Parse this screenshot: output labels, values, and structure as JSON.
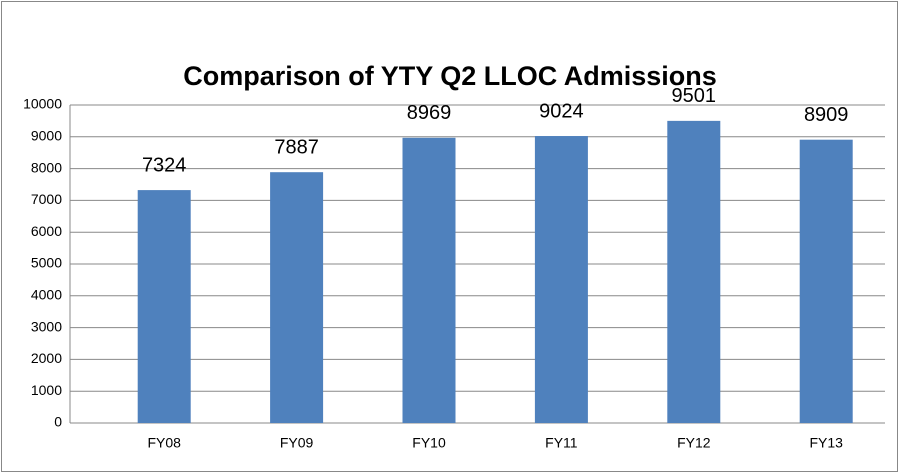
{
  "chart_data": {
    "type": "bar",
    "title": "Comparison of YTY Q2 LLOC Admissions",
    "categories": [
      "FY08",
      "FY09",
      "FY10",
      "FY11",
      "FY12",
      "FY13"
    ],
    "values": [
      7324,
      7887,
      8969,
      9024,
      9501,
      8909
    ],
    "color": "#4f81bd",
    "ylim": [
      0,
      10000
    ],
    "yticks": [
      0,
      1000,
      2000,
      3000,
      4000,
      5000,
      6000,
      7000,
      8000,
      9000,
      10000
    ],
    "grid": true
  }
}
